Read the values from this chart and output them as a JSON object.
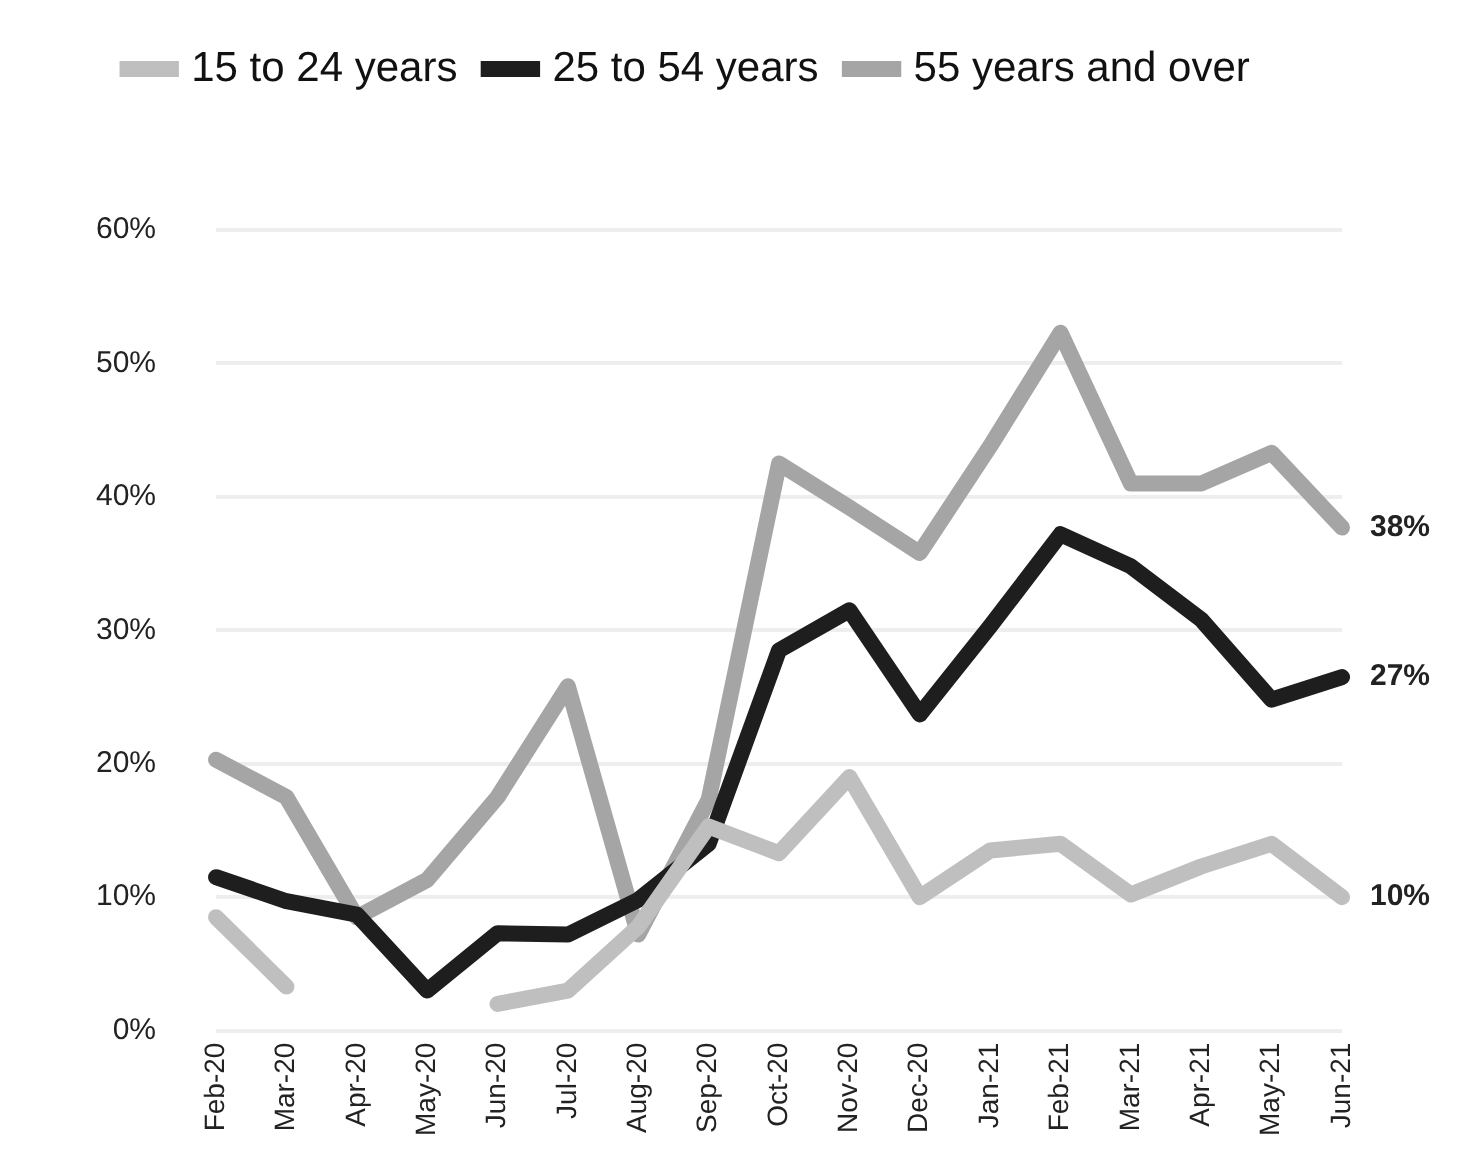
{
  "chart_data": {
    "type": "line",
    "categories": [
      "Feb-20",
      "Mar-20",
      "Apr-20",
      "May-20",
      "Jun-20",
      "Jul-20",
      "Aug-20",
      "Sep-20",
      "Oct-20",
      "Nov-20",
      "Dec-20",
      "Jan-21",
      "Feb-21",
      "Mar-21",
      "Apr-21",
      "May-21",
      "Jun-21"
    ],
    "series": [
      {
        "name": "15 to 24 years",
        "color": "#bfbfbf",
        "values": [
          8.5,
          3.3,
          null,
          null,
          2,
          3,
          7.8,
          15.3,
          13.3,
          19,
          10,
          13.5,
          14,
          10.2,
          12.3,
          14,
          10
        ],
        "value_labels": [
          null,
          null,
          null,
          null,
          null,
          null,
          null,
          null,
          null,
          null,
          null,
          null,
          null,
          null,
          null,
          null,
          "10%"
        ]
      },
      {
        "name": "25 to 54 years",
        "color": "#1e1e1e",
        "values": [
          11.5,
          9.7,
          8.7,
          3,
          7.3,
          7.2,
          9.8,
          14,
          28.5,
          31.5,
          23.7,
          30.3,
          37.2,
          34.8,
          30.8,
          24.8,
          26.5
        ],
        "value_labels": [
          null,
          null,
          null,
          null,
          null,
          null,
          null,
          null,
          null,
          null,
          null,
          null,
          null,
          null,
          null,
          null,
          "27%"
        ]
      },
      {
        "name": "55 years and over",
        "color": "#a5a5a5",
        "values": [
          20.3,
          17.5,
          8.5,
          11.3,
          17.5,
          25.8,
          7.2,
          17.3,
          42.5,
          39.2,
          35.8,
          43.8,
          52.3,
          41,
          41,
          43.3,
          37.7
        ],
        "value_labels": [
          null,
          null,
          null,
          null,
          null,
          null,
          null,
          null,
          null,
          null,
          null,
          null,
          null,
          null,
          null,
          null,
          "38%"
        ]
      }
    ],
    "ylim": [
      0,
      60
    ],
    "yticks": [
      {
        "value": 0,
        "label": "0%"
      },
      {
        "value": 10,
        "label": "10%"
      },
      {
        "value": 20,
        "label": "20%"
      },
      {
        "value": 30,
        "label": "30%"
      },
      {
        "value": 40,
        "label": "40%"
      },
      {
        "value": 50,
        "label": "50%"
      },
      {
        "value": 60,
        "label": "60%"
      }
    ],
    "grid": "y",
    "legend": "top",
    "marker": "none",
    "line_style": "solid"
  }
}
